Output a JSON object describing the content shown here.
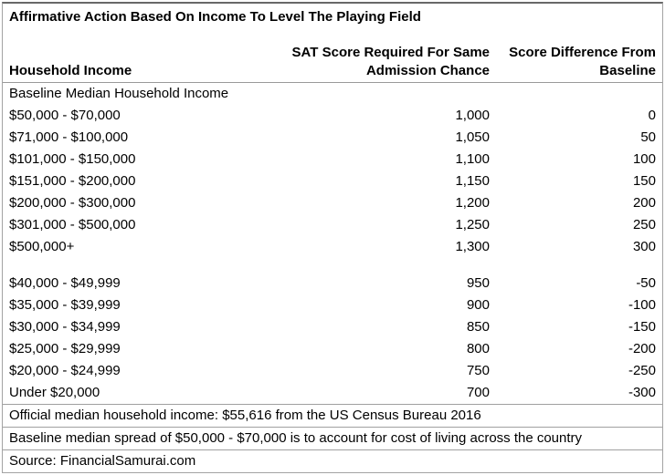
{
  "chart_data": {
    "type": "table",
    "title": "Affirmative Action Based On Income To Level The Playing Field",
    "columns": {
      "income": "Household Income",
      "sat": "SAT Score Required For Same Admission Chance",
      "diff": "Score Difference From Baseline"
    },
    "rows": [
      {
        "income": "Baseline Median Household Income",
        "sat": "",
        "diff": ""
      },
      {
        "income": "$50,000 - $70,000",
        "sat": "1,000",
        "diff": "0"
      },
      {
        "income": "$71,000 - $100,000",
        "sat": "1,050",
        "diff": "50"
      },
      {
        "income": "$101,000 - $150,000",
        "sat": "1,100",
        "diff": "100"
      },
      {
        "income": "$151,000 - $200,000",
        "sat": "1,150",
        "diff": "150"
      },
      {
        "income": "$200,000 - $300,000",
        "sat": "1,200",
        "diff": "200"
      },
      {
        "income": "$301,000 - $500,000",
        "sat": "1,250",
        "diff": "250"
      },
      {
        "income": "$500,000+",
        "sat": "1,300",
        "diff": "300"
      },
      {
        "income": "",
        "sat": "",
        "diff": ""
      },
      {
        "income": "$40,000 - $49,999",
        "sat": "950",
        "diff": "-50"
      },
      {
        "income": "$35,000 - $39,999",
        "sat": "900",
        "diff": "-100"
      },
      {
        "income": "$30,000 - $34,999",
        "sat": "850",
        "diff": "-150"
      },
      {
        "income": "$25,000 - $29,999",
        "sat": "800",
        "diff": "-200"
      },
      {
        "income": "$20,000 - $24,999",
        "sat": "750",
        "diff": "-250"
      },
      {
        "income": "Under $20,000",
        "sat": "700",
        "diff": "-300"
      }
    ],
    "notes": [
      "Official median household income: $55,616 from the US Census Bureau 2016",
      "Baseline median spread of $50,000 - $70,000 is to account for cost of living across the country",
      "Source: FinancialSamurai.com"
    ],
    "layout": {
      "numeric_columns_alignment": "right",
      "grid": "outer border, line under header, lines between note rows only"
    }
  },
  "colors": {
    "text": "#000000",
    "background": "#ffffff",
    "border_top": "#686868",
    "border": "#a3a3a3",
    "separator": "#999999"
  }
}
